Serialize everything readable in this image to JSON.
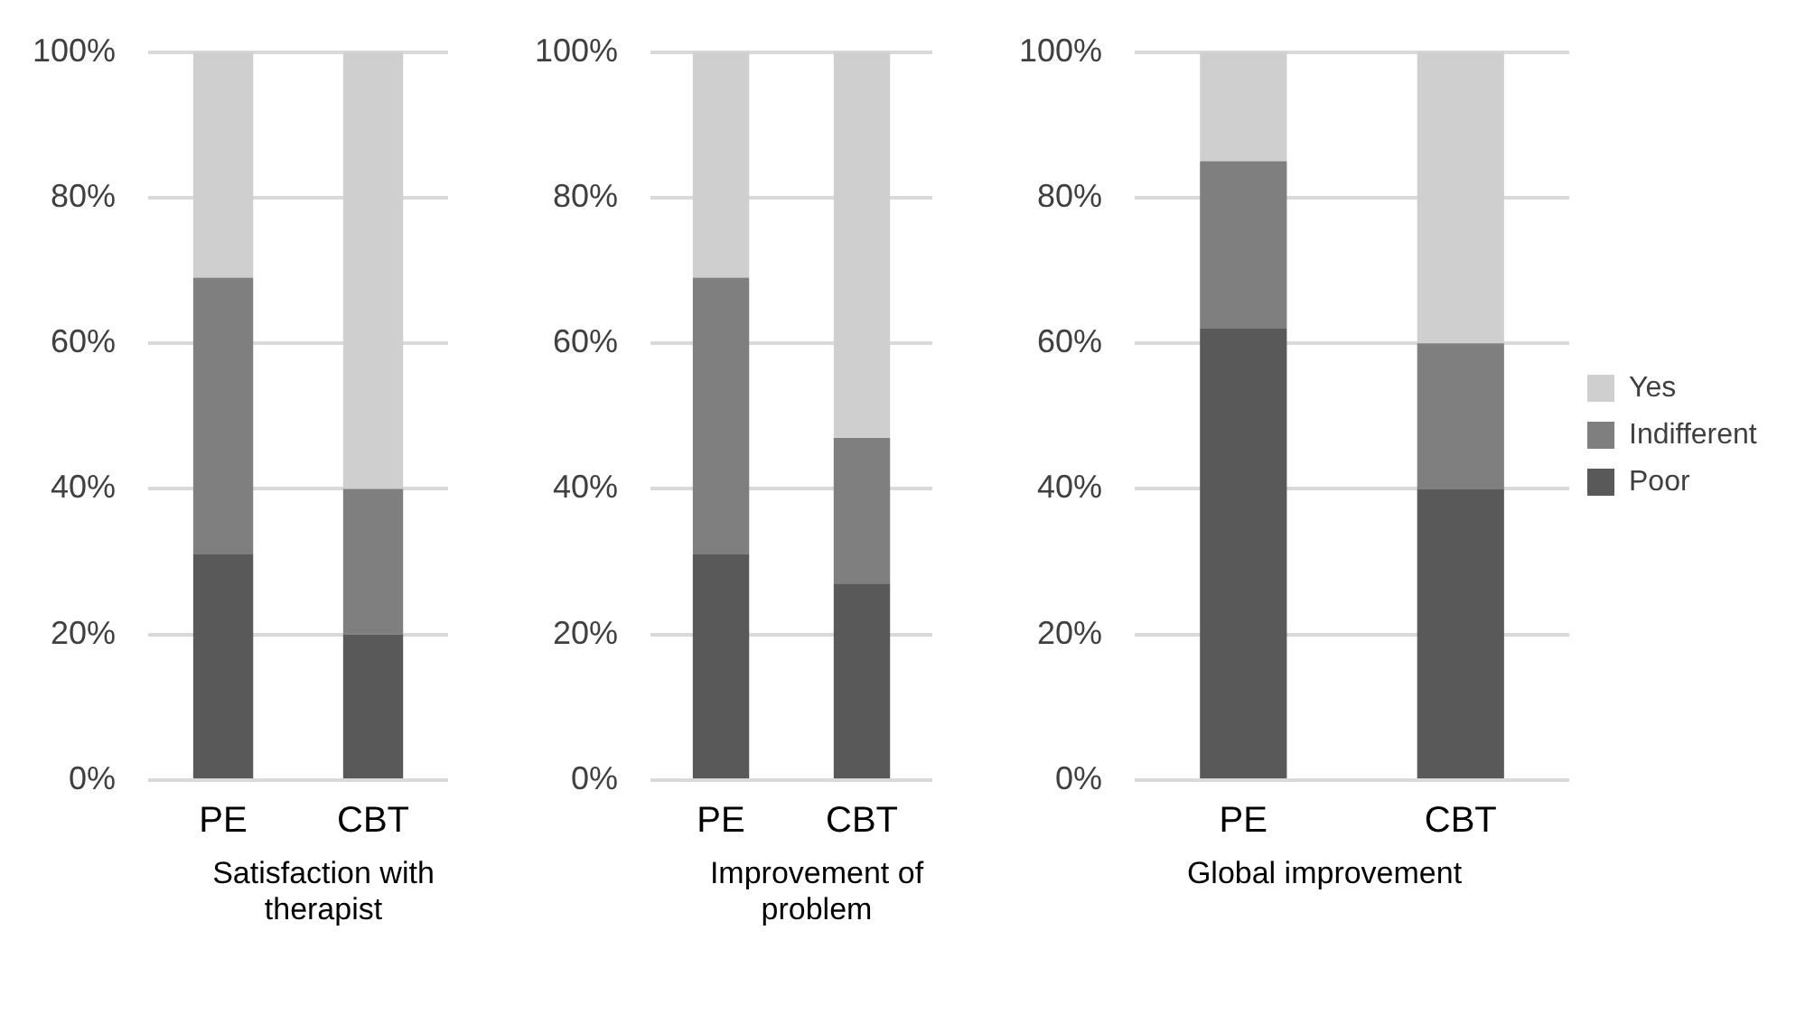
{
  "chart_data": [
    {
      "type": "bar",
      "xlabel": "Satisfaction with therapist",
      "categories": [
        "PE",
        "CBT"
      ],
      "stacked": true,
      "grid": "y",
      "legend": false,
      "ylim": [
        0,
        100
      ],
      "yticks": [
        {
          "value": 0,
          "label": "0%"
        },
        {
          "value": 20,
          "label": "20%"
        },
        {
          "value": 40,
          "label": "40%"
        },
        {
          "value": 60,
          "label": "60%"
        },
        {
          "value": 80,
          "label": "80%"
        },
        {
          "value": 100,
          "label": "100%"
        }
      ],
      "series": [
        {
          "color": "#595959",
          "values": [
            31,
            20
          ]
        },
        {
          "color": "#7f7f7f",
          "values": [
            38,
            20
          ]
        },
        {
          "color": "#d0cfd0",
          "values": [
            31,
            60
          ]
        }
      ]
    },
    {
      "type": "bar",
      "xlabel": "Improvement of problem",
      "categories": [
        "PE",
        "CBT"
      ],
      "stacked": true,
      "grid": "y",
      "legend": false,
      "ylim": [
        0,
        100
      ],
      "yticks": [
        {
          "value": 0,
          "label": "0%"
        },
        {
          "value": 20,
          "label": "20%"
        },
        {
          "value": 40,
          "label": "40%"
        },
        {
          "value": 60,
          "label": "60%"
        },
        {
          "value": 80,
          "label": "80%"
        },
        {
          "value": 100,
          "label": "100%"
        }
      ],
      "series": [
        {
          "color": "#595959",
          "values": [
            31,
            27
          ]
        },
        {
          "color": "#7f7f7f",
          "values": [
            38,
            20
          ]
        },
        {
          "color": "#d0cfd0",
          "values": [
            31,
            53
          ]
        }
      ]
    },
    {
      "type": "bar",
      "xlabel": "Global improvement",
      "categories": [
        "PE",
        "CBT"
      ],
      "stacked": true,
      "grid": "y",
      "legend": "right",
      "ylim": [
        0,
        100
      ],
      "yticks": [
        {
          "value": 0,
          "label": "0%"
        },
        {
          "value": 20,
          "label": "20%"
        },
        {
          "value": 40,
          "label": "40%"
        },
        {
          "value": 60,
          "label": "60%"
        },
        {
          "value": 80,
          "label": "80%"
        },
        {
          "value": 100,
          "label": "100%"
        }
      ],
      "series": [
        {
          "name": "Poor",
          "color": "#595959",
          "values": [
            62,
            40
          ]
        },
        {
          "name": "Indifferent",
          "color": "#7f7f7f",
          "values": [
            23,
            20
          ]
        },
        {
          "name": "Yes",
          "color": "#d0cfd0",
          "values": [
            15,
            40
          ]
        }
      ]
    }
  ]
}
